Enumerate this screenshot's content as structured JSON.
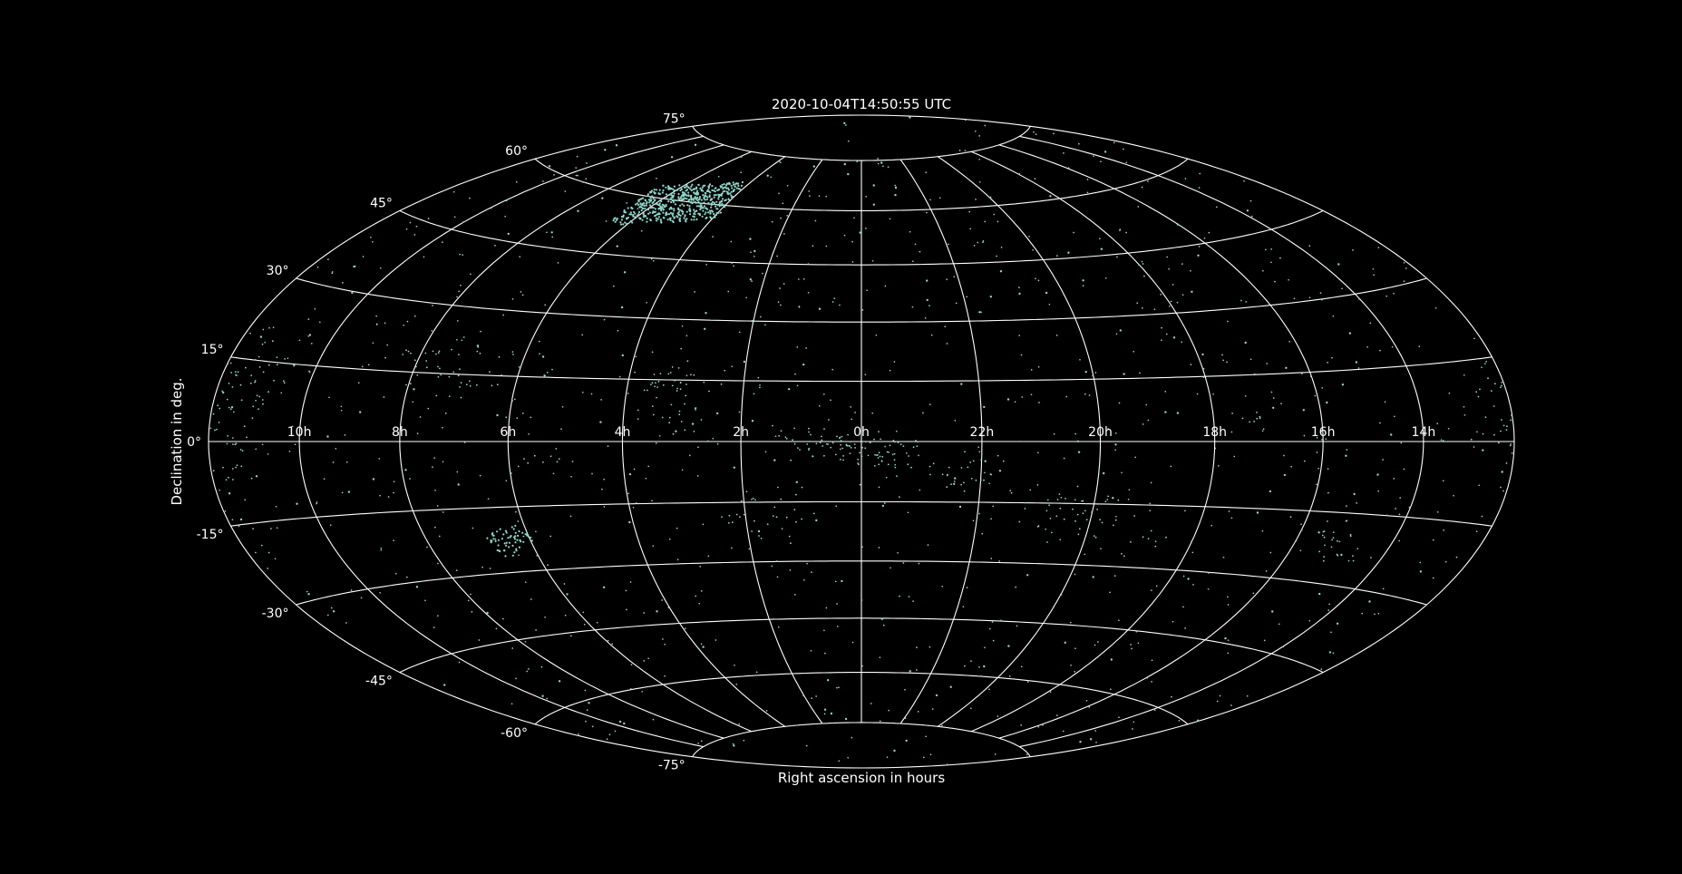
{
  "chart_data": {
    "type": "scatter",
    "projection": "hammer",
    "title": "2020-10-04T14:50:55 UTC",
    "xlabel": "Right ascension in hours",
    "ylabel": "Declination in deg.",
    "background_color": "#000000",
    "grid_color": "#ffffff",
    "point_color": "#8fd6c9",
    "grid": true,
    "center_ra_hours": 0,
    "ra_direction": "increasing-left",
    "x_ticks": [
      "10h",
      "8h",
      "6h",
      "4h",
      "2h",
      "0h",
      "22h",
      "20h",
      "18h",
      "16h",
      "14h"
    ],
    "x_tick_values_hours": [
      10,
      8,
      6,
      4,
      2,
      0,
      22,
      20,
      18,
      16,
      14
    ],
    "y_ticks": [
      "75°",
      "60°",
      "45°",
      "30°",
      "15°",
      "0°",
      "-15°",
      "-30°",
      "-45°",
      "-60°",
      "-75°"
    ],
    "y_tick_values_deg": [
      75,
      60,
      45,
      30,
      15,
      0,
      -15,
      -30,
      -45,
      -60,
      -75
    ],
    "ylim": [
      -90,
      90
    ],
    "xlim_hours": [
      -12,
      12
    ],
    "random_star_count": 1100,
    "clusters": [
      {
        "ra_h": 5.3,
        "dec": 59.5,
        "ra_spread_h": 1.3,
        "dec_spread": 5.5,
        "count": 520,
        "dense": true
      },
      {
        "ra_h": 6.4,
        "dec": -22.5,
        "ra_spread_h": 0.35,
        "dec_spread": 2.5,
        "count": 60,
        "dense": true
      },
      {
        "ra_h": 11.2,
        "dec": 12.0,
        "ra_spread_h": 0.4,
        "dec_spread": 3.0,
        "count": 30,
        "dense": false
      },
      {
        "ra_h": 12.0,
        "dec": 8.0,
        "ra_spread_h": 0.35,
        "dec_spread": 3.0,
        "count": 25,
        "dense": false
      },
      {
        "ra_h": 12.0,
        "dec": 2.0,
        "ra_spread_h": 0.3,
        "dec_spread": 2.0,
        "count": 12,
        "dense": false
      },
      {
        "ra_h": 7.8,
        "dec": 17.0,
        "ra_spread_h": 0.5,
        "dec_spread": 3.0,
        "count": 25,
        "dense": false
      },
      {
        "ra_h": 6.9,
        "dec": 15.0,
        "ra_spread_h": 0.5,
        "dec_spread": 3.0,
        "count": 20,
        "dense": false
      },
      {
        "ra_h": 3.2,
        "dec": 11.0,
        "ra_spread_h": 0.35,
        "dec_spread": 4.0,
        "count": 40,
        "dense": false
      },
      {
        "ra_h": 0.7,
        "dec": -0.5,
        "ra_spread_h": 0.45,
        "dec_spread": 2.0,
        "count": 45,
        "dense": false
      },
      {
        "ra_h": 23.7,
        "dec": -4.0,
        "ra_spread_h": 0.45,
        "dec_spread": 3.0,
        "count": 50,
        "dense": false
      },
      {
        "ra_h": 22.3,
        "dec": -9.0,
        "ra_spread_h": 0.3,
        "dec_spread": 3.5,
        "count": 25,
        "dense": false
      },
      {
        "ra_h": 1.4,
        "dec": -17.0,
        "ra_spread_h": 0.3,
        "dec_spread": 3.0,
        "count": 15,
        "dense": false
      },
      {
        "ra_h": 20.0,
        "dec": -19.0,
        "ra_spread_h": 0.3,
        "dec_spread": 3.5,
        "count": 20,
        "dense": false
      },
      {
        "ra_h": 20.8,
        "dec": -17.0,
        "ra_spread_h": 0.3,
        "dec_spread": 3.0,
        "count": 15,
        "dense": false
      },
      {
        "ra_h": 15.3,
        "dec": -20.0,
        "ra_spread_h": 0.3,
        "dec_spread": 3.0,
        "count": 20,
        "dense": false
      },
      {
        "ra_h": 11.6,
        "dec": -2.0,
        "ra_spread_h": 0.5,
        "dec_spread": 3.0,
        "count": 20,
        "dense": false
      },
      {
        "ra_h": 1.9,
        "dec": -21.0,
        "ra_spread_h": 0.3,
        "dec_spread": 3.0,
        "count": 10,
        "dense": false
      },
      {
        "ra_h": 5.4,
        "dec": -5.0,
        "ra_spread_h": 0.25,
        "dec_spread": 2.0,
        "count": 10,
        "dense": false
      },
      {
        "ra_h": 17.2,
        "dec": 5.0,
        "ra_spread_h": 0.15,
        "dec_spread": 1.0,
        "count": 8,
        "dense": false
      },
      {
        "ra_h": 18.9,
        "dec": -22.0,
        "ra_spread_h": 0.25,
        "dec_spread": 3.0,
        "count": 10,
        "dense": false
      }
    ]
  }
}
